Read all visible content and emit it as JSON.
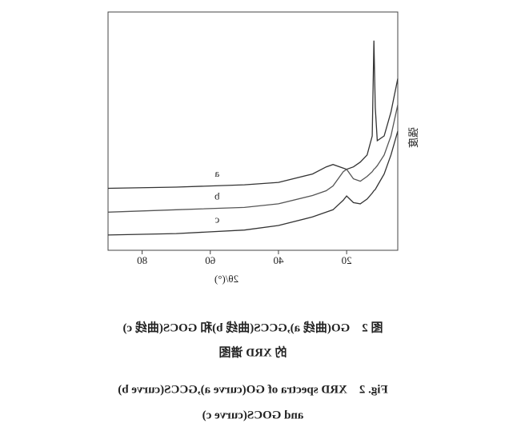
{
  "chart_data": {
    "type": "line",
    "x_label": "2θ/(°)",
    "y_label": "强度",
    "xlim": [
      5,
      90
    ],
    "xticks": [
      20,
      40,
      60,
      80
    ],
    "ylim": [
      0,
      100
    ],
    "mirrored": true,
    "x": [
      90,
      70,
      50,
      40,
      30,
      26,
      24,
      21,
      20,
      18,
      16,
      14,
      12.5,
      12,
      11.6,
      11,
      9,
      7,
      5
    ],
    "series": [
      {
        "name": "a",
        "color": "#333333",
        "values": [
          26,
          26.5,
          27.5,
          28.5,
          32,
          35,
          36,
          34.5,
          34,
          35,
          37,
          40,
          48,
          88,
          60,
          46,
          48,
          58,
          72
        ]
      },
      {
        "name": "b",
        "color": "#555555",
        "values": [
          16,
          17,
          18,
          19.5,
          23,
          25,
          27,
          33,
          34,
          30,
          29,
          31,
          33,
          34,
          34.5,
          35.5,
          40,
          48,
          61
        ]
      },
      {
        "name": "c",
        "color": "#333333",
        "values": [
          6.4,
          7,
          8.5,
          10.4,
          14,
          16,
          17,
          21,
          22.8,
          20,
          19.5,
          21.5,
          24,
          25,
          25.5,
          27,
          32,
          40,
          50
        ]
      }
    ]
  },
  "caption": {
    "lines": [
      "图 2　GO(曲线 a),GCCS(曲线 b)和 GOCS(曲线 c)",
      "的 XRD 谱图",
      "Fig. 2　XRD spectra of GO(curve a),GCCS(curve b)",
      "and GOCS(curve c)"
    ]
  }
}
